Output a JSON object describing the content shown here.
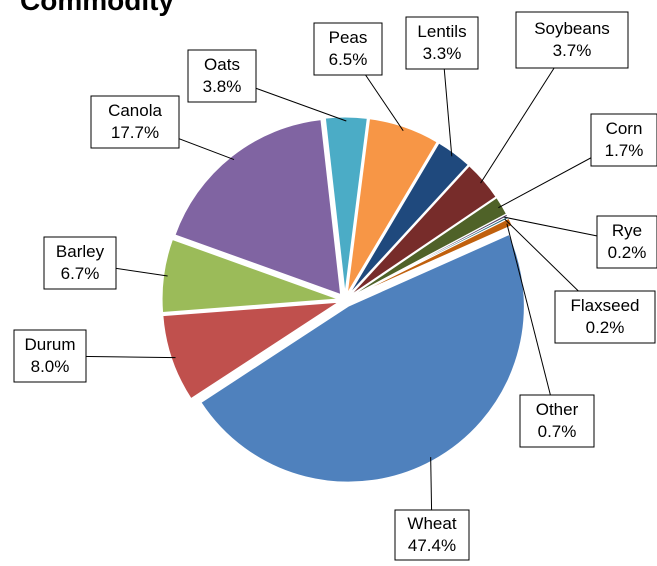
{
  "chart_data": {
    "type": "pie",
    "title": "Commodity",
    "categories": [
      "Wheat",
      "Durum",
      "Barley",
      "Canola",
      "Oats",
      "Peas",
      "Lentils",
      "Soybeans",
      "Corn",
      "Rye",
      "Flaxseed",
      "Other"
    ],
    "values": [
      47.4,
      8.0,
      6.7,
      17.7,
      3.8,
      6.5,
      3.3,
      3.7,
      1.7,
      0.2,
      0.2,
      0.7
    ],
    "value_labels": [
      "47.4%",
      "8.0%",
      "6.7%",
      "17.7%",
      "3.8%",
      "6.5%",
      "3.3%",
      "3.7%",
      "1.7%",
      "0.2%",
      "0.2%",
      "0.7%"
    ],
    "colors": [
      "#4f81bd",
      "#c0504d",
      "#9bbb59",
      "#8064a2",
      "#4bacc6",
      "#f79646",
      "#1f497d",
      "#772c2a",
      "#4f6228",
      "#4d3b62",
      "#276a7c",
      "#c0600d"
    ]
  }
}
